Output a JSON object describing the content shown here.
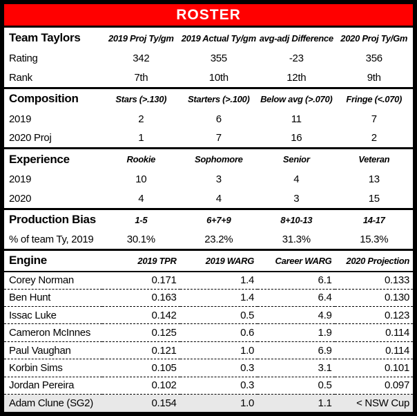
{
  "banner": {
    "title": "ROSTER"
  },
  "colors": {
    "banner_background": "#ff0000",
    "banner_text": "#ffffff",
    "border": "#000000",
    "highlight_row_background": "#e8e8e8",
    "text": "#000000"
  },
  "chart_data": [
    {
      "type": "table",
      "title": "Team Taylors",
      "columns": [
        "2019 Proj Ty/gm",
        "2019 Actual Ty/gm",
        "avg-adj Difference",
        "2020 Proj Ty/Gm"
      ],
      "rows": [
        [
          "Rating",
          "342",
          "355",
          "-23",
          "356"
        ],
        [
          "Rank",
          "7th",
          "10th",
          "12th",
          "9th"
        ]
      ]
    },
    {
      "type": "table",
      "title": "Composition",
      "columns": [
        "Stars (>.130)",
        "Starters (>.100)",
        "Below avg (>.070)",
        "Fringe (<.070)"
      ],
      "rows": [
        [
          "2019",
          "2",
          "6",
          "11",
          "7"
        ],
        [
          "2020 Proj",
          "1",
          "7",
          "16",
          "2"
        ]
      ]
    },
    {
      "type": "table",
      "title": "Experience",
      "columns": [
        "Rookie",
        "Sophomore",
        "Senior",
        "Veteran"
      ],
      "rows": [
        [
          "2019",
          "10",
          "3",
          "4",
          "13"
        ],
        [
          "2020",
          "4",
          "4",
          "3",
          "15"
        ]
      ]
    },
    {
      "type": "table",
      "title": "Production Bias",
      "columns": [
        "1-5",
        "6+7+9",
        "8+10-13",
        "14-17"
      ],
      "rows": [
        [
          "% of team Ty, 2019",
          "30.1%",
          "23.2%",
          "31.3%",
          "15.3%"
        ]
      ]
    },
    {
      "type": "table",
      "title": "Engine",
      "columns": [
        "2019 TPR",
        "2019 WARG",
        "Career WARG",
        "2020 Projection"
      ],
      "highlight_last_row": true,
      "rows": [
        [
          "Corey Norman",
          "0.171",
          "1.4",
          "6.1",
          "0.133"
        ],
        [
          "Ben Hunt",
          "0.163",
          "1.4",
          "6.4",
          "0.130"
        ],
        [
          "Issac Luke",
          "0.142",
          "0.5",
          "4.9",
          "0.123"
        ],
        [
          "Cameron McInnes",
          "0.125",
          "0.6",
          "1.9",
          "0.114"
        ],
        [
          "Paul Vaughan",
          "0.121",
          "1.0",
          "6.9",
          "0.114"
        ],
        [
          "Korbin Sims",
          "0.105",
          "0.3",
          "3.1",
          "0.101"
        ],
        [
          "Jordan Pereira",
          "0.102",
          "0.3",
          "0.5",
          "0.097"
        ],
        [
          "Adam Clune (SG2)",
          "0.154",
          "1.0",
          "1.1",
          "< NSW Cup"
        ]
      ]
    }
  ]
}
